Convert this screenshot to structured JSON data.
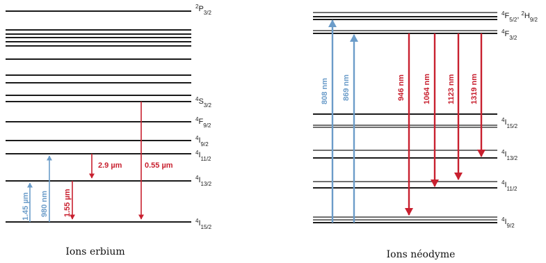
{
  "colors": {
    "level": "#1a1a1a",
    "emission": "#c8202f",
    "absorption": "#6b9cc9",
    "text": "#1a1a1a"
  },
  "erbium": {
    "caption": "Ions erbium",
    "levels": {
      "p32": {
        "base": "P",
        "sup": "2",
        "sub": "3/2"
      },
      "s32": {
        "base": "S",
        "sup": "4",
        "sub": "3/2"
      },
      "f92": {
        "base": "F",
        "sup": "4",
        "sub": "9/2"
      },
      "i92": {
        "base": "I",
        "sup": "4",
        "sub": "9/2"
      },
      "i112": {
        "base": "I",
        "sup": "4",
        "sub": "11/2"
      },
      "i132": {
        "base": "I",
        "sup": "4",
        "sub": "13/2"
      },
      "i152": {
        "base": "I",
        "sup": "4",
        "sub": "15/2"
      }
    },
    "transitions": {
      "abs145": "1.45 µm",
      "abs980": "980 nm",
      "em155": "1.55 µm",
      "em29": "2.9 µm",
      "em055": "0.55 µm"
    }
  },
  "neodymium": {
    "caption": "Ions néodyme",
    "levels": {
      "f52": {
        "base": "F",
        "sup": "4",
        "sub": "5/2",
        "sep": ", ",
        "base2": "H",
        "sup2": "2",
        "sub2": "9/2"
      },
      "f32": {
        "base": "F",
        "sup": "4",
        "sub": "3/2"
      },
      "i152": {
        "base": "I",
        "sup": "4",
        "sub": "15/2"
      },
      "i132": {
        "base": "I",
        "sup": "4",
        "sub": "13/2"
      },
      "i112": {
        "base": "I",
        "sup": "4",
        "sub": "11/2"
      },
      "i92": {
        "base": "I",
        "sup": "4",
        "sub": "9/2"
      }
    },
    "transitions": {
      "abs808": "808 nm",
      "abs869": "869 nm",
      "em946": "946 nm",
      "em1064": "1064 nm",
      "em1123": "1123 nm",
      "em1319": "1319 nm"
    }
  }
}
